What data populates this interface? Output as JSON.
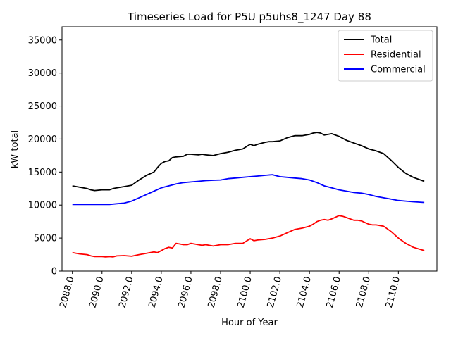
{
  "chart_data": {
    "type": "line",
    "title": "Timeseries Load for P5U p5uhs8_1247  Day 88",
    "xlabel": "Hour of Year",
    "ylabel": "kW total",
    "xlim": [
      2087.3,
      2112.6
    ],
    "ylim": [
      0,
      37000
    ],
    "xticks": [
      2088,
      2090,
      2092,
      2094,
      2096,
      2098,
      2100,
      2102,
      2104,
      2106,
      2108,
      2110
    ],
    "xtick_labels": [
      "2088.0",
      "2090.0",
      "2092.0",
      "2094.0",
      "2096.0",
      "2098.0",
      "2100.0",
      "2102.0",
      "2104.0",
      "2106.0",
      "2108.0",
      "2110.0"
    ],
    "yticks": [
      0,
      5000,
      10000,
      15000,
      20000,
      25000,
      30000,
      35000
    ],
    "ytick_labels": [
      "0",
      "5000",
      "10000",
      "15000",
      "20000",
      "25000",
      "30000",
      "35000"
    ],
    "legend_position": "top-right",
    "series": [
      {
        "name": "Total",
        "color": "#000000",
        "x": [
          2088,
          2088.5,
          2089,
          2089.25,
          2089.5,
          2089.75,
          2090,
          2090.25,
          2090.5,
          2090.75,
          2091,
          2091.5,
          2092,
          2092.25,
          2092.5,
          2093,
          2093.5,
          2093.75,
          2094,
          2094.25,
          2094.5,
          2094.75,
          2095,
          2095.5,
          2095.75,
          2096,
          2096.5,
          2096.75,
          2097,
          2097.5,
          2098,
          2098.5,
          2099,
          2099.5,
          2100,
          2100.25,
          2100.5,
          2101,
          2101.25,
          2101.5,
          2102,
          2102.5,
          2103,
          2103.5,
          2104,
          2104.25,
          2104.5,
          2104.75,
          2105,
          2105.25,
          2105.5,
          2106,
          2106.5,
          2106.75,
          2107,
          2107.5,
          2108,
          2108.5,
          2109,
          2109.5,
          2110,
          2110.5,
          2111,
          2111.75
        ],
        "values": [
          12900,
          12700,
          12500,
          12300,
          12200,
          12250,
          12300,
          12300,
          12300,
          12500,
          12600,
          12800,
          13000,
          13400,
          13800,
          14500,
          15000,
          15700,
          16300,
          16600,
          16700,
          17200,
          17300,
          17400,
          17700,
          17700,
          17600,
          17700,
          17600,
          17500,
          17800,
          18000,
          18300,
          18500,
          19200,
          19000,
          19200,
          19500,
          19600,
          19600,
          19700,
          20200,
          20500,
          20500,
          20700,
          20900,
          21000,
          20900,
          20600,
          20700,
          20800,
          20400,
          19800,
          19600,
          19400,
          19000,
          18500,
          18200,
          17800,
          16800,
          15700,
          14800,
          14200,
          13600
        ]
      },
      {
        "name": "Residential",
        "color": "#ff0000",
        "x": [
          2088,
          2088.5,
          2089,
          2089.25,
          2089.5,
          2089.75,
          2090,
          2090.25,
          2090.5,
          2090.75,
          2091,
          2091.5,
          2092,
          2092.5,
          2093,
          2093.25,
          2093.5,
          2093.75,
          2094,
          2094.25,
          2094.5,
          2094.75,
          2095,
          2095.5,
          2095.75,
          2096,
          2096.5,
          2096.75,
          2097,
          2097.5,
          2098,
          2098.5,
          2099,
          2099.5,
          2100,
          2100.25,
          2100.5,
          2101,
          2101.5,
          2102,
          2102.5,
          2103,
          2103.5,
          2104,
          2104.25,
          2104.5,
          2104.75,
          2105,
          2105.25,
          2105.5,
          2106,
          2106.25,
          2106.5,
          2107,
          2107.25,
          2107.5,
          2108,
          2108.25,
          2108.5,
          2109,
          2109.5,
          2110,
          2110.5,
          2111,
          2111.75
        ],
        "values": [
          2800,
          2600,
          2500,
          2300,
          2200,
          2200,
          2200,
          2150,
          2200,
          2150,
          2300,
          2350,
          2250,
          2500,
          2700,
          2800,
          2900,
          2800,
          3100,
          3400,
          3600,
          3500,
          4200,
          4000,
          4000,
          4200,
          4000,
          3900,
          4000,
          3800,
          4000,
          4000,
          4200,
          4200,
          4900,
          4600,
          4700,
          4800,
          5000,
          5300,
          5800,
          6300,
          6500,
          6800,
          7100,
          7500,
          7700,
          7800,
          7700,
          7900,
          8400,
          8300,
          8100,
          7700,
          7700,
          7600,
          7100,
          7000,
          7000,
          6800,
          6000,
          5000,
          4200,
          3600,
          3100
        ]
      },
      {
        "name": "Commercial",
        "color": "#0000ff",
        "x": [
          2088,
          2089,
          2090,
          2090.5,
          2091,
          2091.5,
          2092,
          2092.5,
          2093,
          2093.5,
          2094,
          2094.5,
          2095,
          2095.5,
          2096,
          2096.5,
          2097,
          2097.5,
          2098,
          2098.5,
          2099,
          2099.5,
          2100,
          2100.5,
          2101,
          2101.5,
          2102,
          2102.5,
          2103,
          2103.5,
          2104,
          2104.5,
          2105,
          2105.5,
          2106,
          2106.5,
          2107,
          2107.5,
          2108,
          2108.5,
          2109,
          2109.5,
          2110,
          2110.5,
          2111,
          2111.75
        ],
        "values": [
          10100,
          10100,
          10100,
          10100,
          10200,
          10300,
          10600,
          11100,
          11600,
          12100,
          12600,
          12900,
          13200,
          13400,
          13500,
          13600,
          13700,
          13750,
          13800,
          14000,
          14100,
          14200,
          14300,
          14400,
          14500,
          14600,
          14300,
          14200,
          14100,
          14000,
          13800,
          13400,
          12900,
          12600,
          12300,
          12100,
          11900,
          11800,
          11600,
          11300,
          11100,
          10900,
          10700,
          10600,
          10500,
          10400
        ]
      }
    ]
  }
}
